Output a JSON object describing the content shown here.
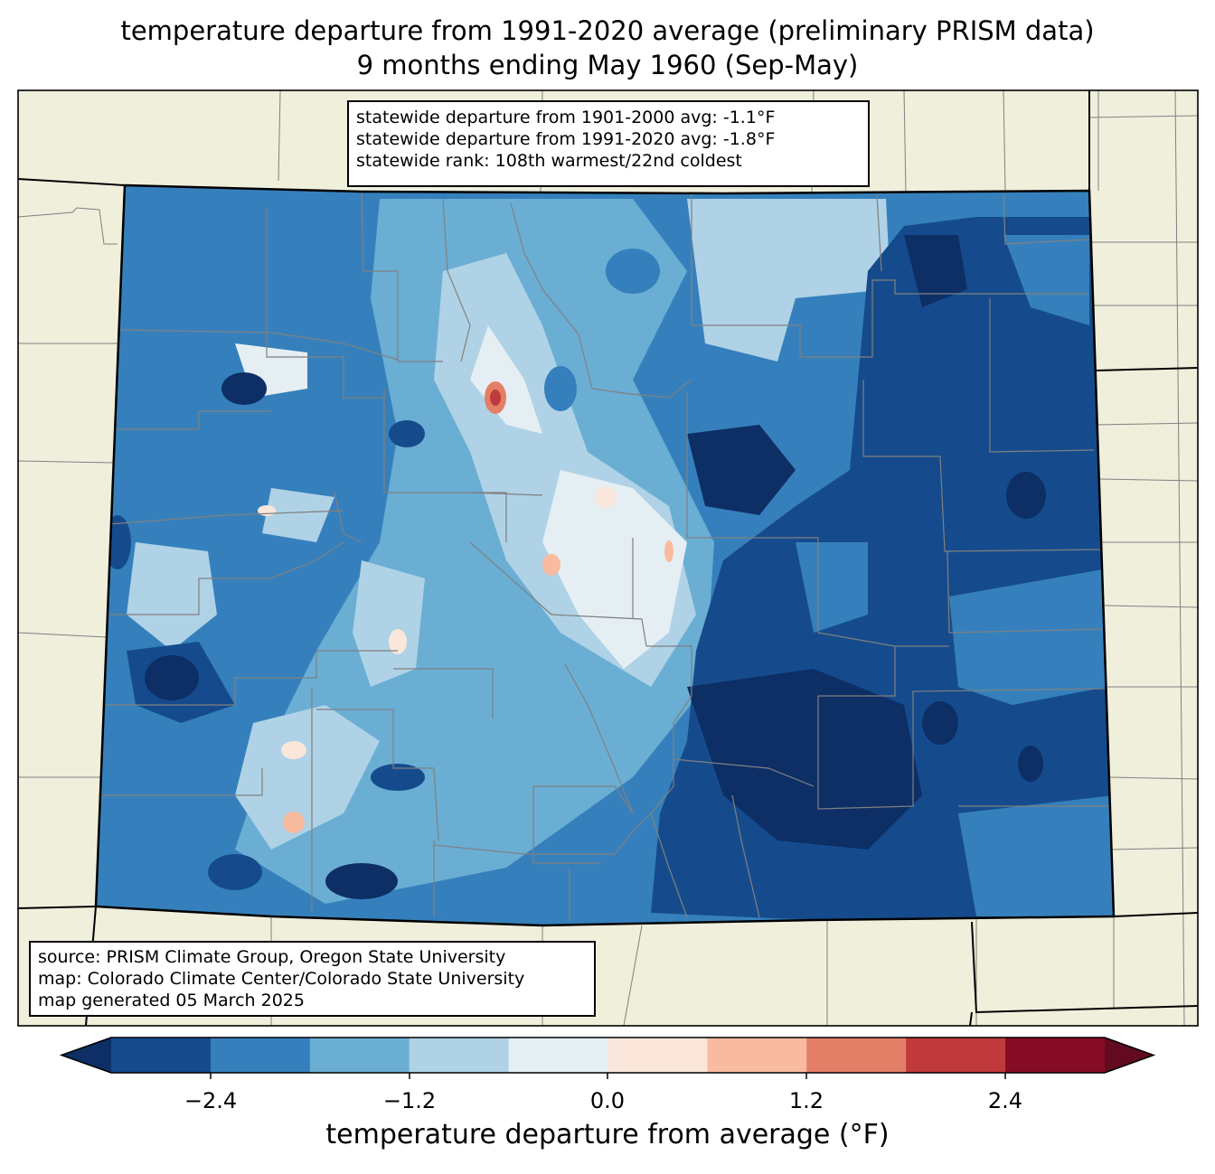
{
  "title": {
    "line1": "temperature departure from 1991-2020 average (preliminary PRISM data)",
    "line2": "9 months ending May 1960 (Sep-May)"
  },
  "stats": {
    "line1": "statewide departure from 1901-2000 avg: -1.1°F",
    "line2": "statewide departure from 1991-2020 avg: -1.8°F",
    "line3": "statewide rank: 108th warmest/22nd coldest"
  },
  "source": {
    "line1": "source: PRISM Climate Group, Oregon State University",
    "line2": "map: Colorado Climate Center/Colorado State University",
    "line3": "map generated 05 March 2025"
  },
  "colorbar": {
    "label": "temperature departure from average (°F)",
    "ticks": [
      "−2.4",
      "−1.2",
      "0.0",
      "1.2",
      "2.4"
    ],
    "colors": [
      "#0d2f66",
      "#154b8c",
      "#3580bc",
      "#6aaed4",
      "#afd2e6",
      "#e5eef3",
      "#fae6da",
      "#f8bba0",
      "#e27f66",
      "#c03a3b",
      "#860c25",
      "#620a1f"
    ]
  },
  "colors": {
    "land": "#efefdc",
    "state_border": "#000000",
    "county_border": "#808080"
  }
}
